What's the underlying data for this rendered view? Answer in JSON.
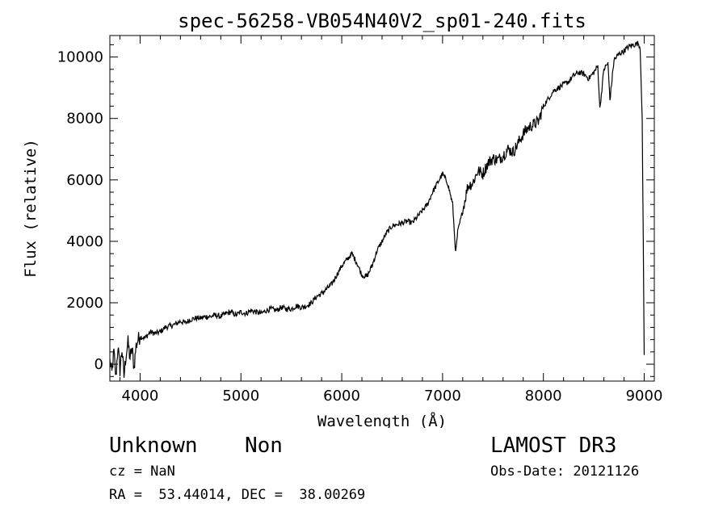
{
  "chart_data": {
    "type": "line",
    "title": "spec-56258-VB054N40V2_sp01-240.fits",
    "xlabel": "Wavelength (Å)",
    "ylabel": "Flux (relative)",
    "xlim": [
      3700,
      9100
    ],
    "ylim": [
      -550,
      10700
    ],
    "xticks": [
      4000,
      5000,
      6000,
      7000,
      8000,
      9000
    ],
    "yticks": [
      0,
      2000,
      4000,
      6000,
      8000,
      10000
    ],
    "grid": false,
    "series": [
      {
        "name": "flux",
        "x": [
          3700,
          3720,
          3740,
          3760,
          3780,
          3800,
          3820,
          3840,
          3860,
          3880,
          3900,
          3920,
          3940,
          3960,
          3980,
          4000,
          4050,
          4100,
          4150,
          4200,
          4250,
          4300,
          4350,
          4400,
          4450,
          4500,
          4550,
          4600,
          4650,
          4700,
          4750,
          4800,
          4850,
          4900,
          4950,
          5000,
          5050,
          5100,
          5150,
          5200,
          5250,
          5300,
          5350,
          5400,
          5450,
          5500,
          5550,
          5600,
          5650,
          5700,
          5750,
          5800,
          5850,
          5900,
          5950,
          6000,
          6050,
          6100,
          6150,
          6200,
          6250,
          6300,
          6350,
          6400,
          6450,
          6500,
          6550,
          6600,
          6650,
          6700,
          6750,
          6800,
          6850,
          6900,
          6950,
          7000,
          7050,
          7100,
          7130,
          7150,
          7200,
          7250,
          7300,
          7350,
          7400,
          7450,
          7500,
          7550,
          7600,
          7650,
          7700,
          7750,
          7800,
          7850,
          7900,
          7950,
          8000,
          8050,
          8100,
          8150,
          8200,
          8250,
          8300,
          8350,
          8400,
          8450,
          8500,
          8540,
          8560,
          8600,
          8640,
          8660,
          8700,
          8750,
          8800,
          8850,
          8900,
          8940,
          8960,
          8980,
          9000
        ],
        "values": [
          100,
          -300,
          400,
          -450,
          600,
          -200,
          500,
          -400,
          300,
          700,
          200,
          500,
          -100,
          600,
          800,
          900,
          850,
          1050,
          1000,
          1050,
          1200,
          1250,
          1300,
          1400,
          1350,
          1450,
          1500,
          1500,
          1550,
          1550,
          1600,
          1550,
          1650,
          1700,
          1600,
          1700,
          1650,
          1750,
          1700,
          1650,
          1750,
          1800,
          1750,
          1850,
          1800,
          1800,
          1900,
          1850,
          1900,
          2000,
          2200,
          2300,
          2450,
          2600,
          2900,
          3200,
          3400,
          3600,
          3300,
          2900,
          2850,
          3200,
          3700,
          4000,
          4300,
          4500,
          4550,
          4600,
          4650,
          4600,
          4800,
          5000,
          5200,
          5600,
          5900,
          6200,
          5900,
          5200,
          3600,
          4300,
          5000,
          5800,
          5900,
          6300,
          6200,
          6550,
          6700,
          6650,
          6800,
          7000,
          6900,
          7200,
          7500,
          7700,
          7800,
          7900,
          8400,
          8650,
          8900,
          9000,
          9100,
          9200,
          9400,
          9500,
          9450,
          9300,
          9500,
          9700,
          8300,
          9600,
          9800,
          8600,
          9900,
          10100,
          10200,
          10350,
          10400,
          10450,
          10300,
          8000,
          300
        ]
      }
    ]
  },
  "footer": {
    "object_class": "Unknown",
    "object_subclass": "Non",
    "survey": "LAMOST DR3",
    "cz": "cz = NaN",
    "obs_date": "Obs-Date: 20121126",
    "radec": "RA =  53.44014, DEC =  38.00269"
  }
}
